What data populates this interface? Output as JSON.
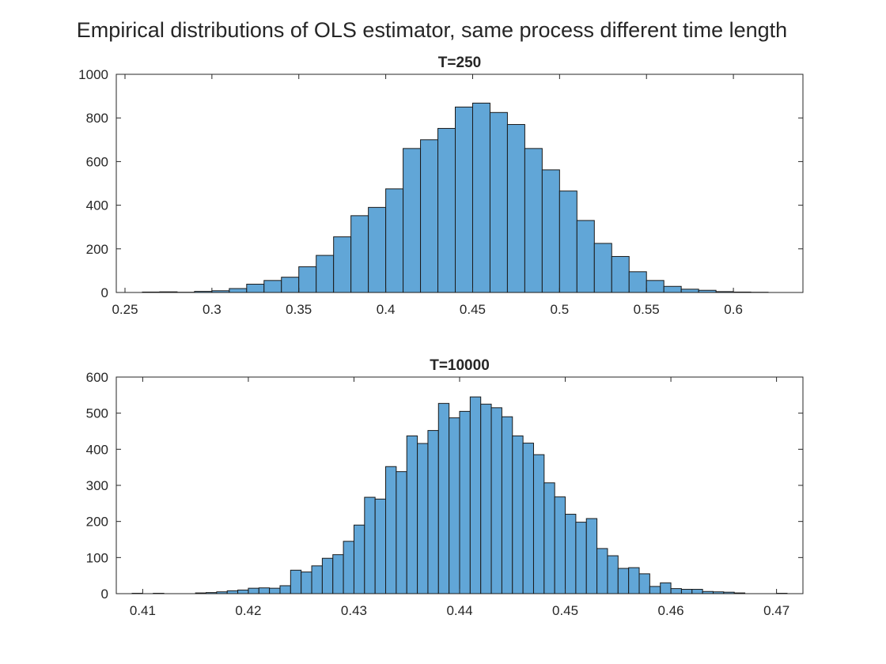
{
  "figure_title": "Empirical distributions of OLS estimator, same process different time length",
  "colors": {
    "bar_fill": "#61a6d7",
    "bar_edge": "#1a1a1a",
    "axis": "#262626"
  },
  "chart_data": [
    {
      "type": "bar",
      "title": "T=250",
      "xlabel": "",
      "ylabel": "",
      "xlim": [
        0.245,
        0.64
      ],
      "ylim": [
        0,
        1000
      ],
      "grid": false,
      "xticks": [
        0.25,
        0.3,
        0.35,
        0.4,
        0.45,
        0.5,
        0.55,
        0.6
      ],
      "xtick_labels": [
        "0.25",
        "0.3",
        "0.35",
        "0.4",
        "0.45",
        "0.5",
        "0.55",
        "0.6"
      ],
      "yticks": [
        0,
        200,
        400,
        600,
        800,
        1000
      ],
      "ytick_labels": [
        "0",
        "200",
        "400",
        "600",
        "800",
        "1000"
      ],
      "bin_start": 0.26,
      "bin_width": 0.01,
      "values": [
        2,
        3,
        1,
        5,
        8,
        18,
        38,
        55,
        70,
        118,
        170,
        255,
        352,
        390,
        475,
        660,
        700,
        752,
        850,
        868,
        825,
        770,
        660,
        562,
        465,
        330,
        225,
        165,
        95,
        55,
        28,
        15,
        10,
        4,
        2,
        1
      ]
    },
    {
      "type": "bar",
      "title": "T=10000",
      "xlabel": "",
      "ylabel": "",
      "xlim": [
        0.4075,
        0.4725
      ],
      "ylim": [
        0,
        600
      ],
      "grid": false,
      "xticks": [
        0.41,
        0.42,
        0.43,
        0.44,
        0.45,
        0.46,
        0.47
      ],
      "xtick_labels": [
        "0.41",
        "0.42",
        "0.43",
        "0.44",
        "0.45",
        "0.46",
        "0.47"
      ],
      "yticks": [
        0,
        100,
        200,
        300,
        400,
        500,
        600
      ],
      "ytick_labels": [
        "0",
        "100",
        "200",
        "300",
        "400",
        "500",
        "600"
      ],
      "bin_start": 0.409,
      "bin_width": 0.001,
      "values": [
        1,
        0,
        1,
        0,
        0,
        0,
        2,
        3,
        5,
        8,
        10,
        15,
        16,
        15,
        22,
        65,
        60,
        77,
        98,
        108,
        145,
        190,
        267,
        262,
        352,
        338,
        437,
        416,
        452,
        527,
        487,
        505,
        545,
        525,
        515,
        490,
        437,
        417,
        385,
        307,
        268,
        220,
        198,
        208,
        125,
        105,
        70,
        72,
        55,
        20,
        30,
        14,
        12,
        12,
        6,
        5,
        4,
        2,
        0,
        0,
        0,
        1
      ]
    }
  ]
}
